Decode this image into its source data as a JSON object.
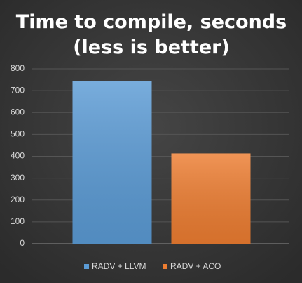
{
  "chart_data": {
    "type": "bar",
    "title": [
      "Time to compile, seconds",
      "(less is better)"
    ],
    "categories": [
      null
    ],
    "series": [
      {
        "name": "RADV + LLVM",
        "color": "#5b9bd5",
        "values": [
          745
        ]
      },
      {
        "name": "RADV + ACO",
        "color": "#ed7d31",
        "values": [
          413
        ]
      }
    ],
    "ylim": [
      0,
      800
    ],
    "yticks": [
      0,
      100,
      200,
      300,
      400,
      500,
      600,
      700,
      800
    ],
    "grid": true,
    "legend": "bottom"
  }
}
